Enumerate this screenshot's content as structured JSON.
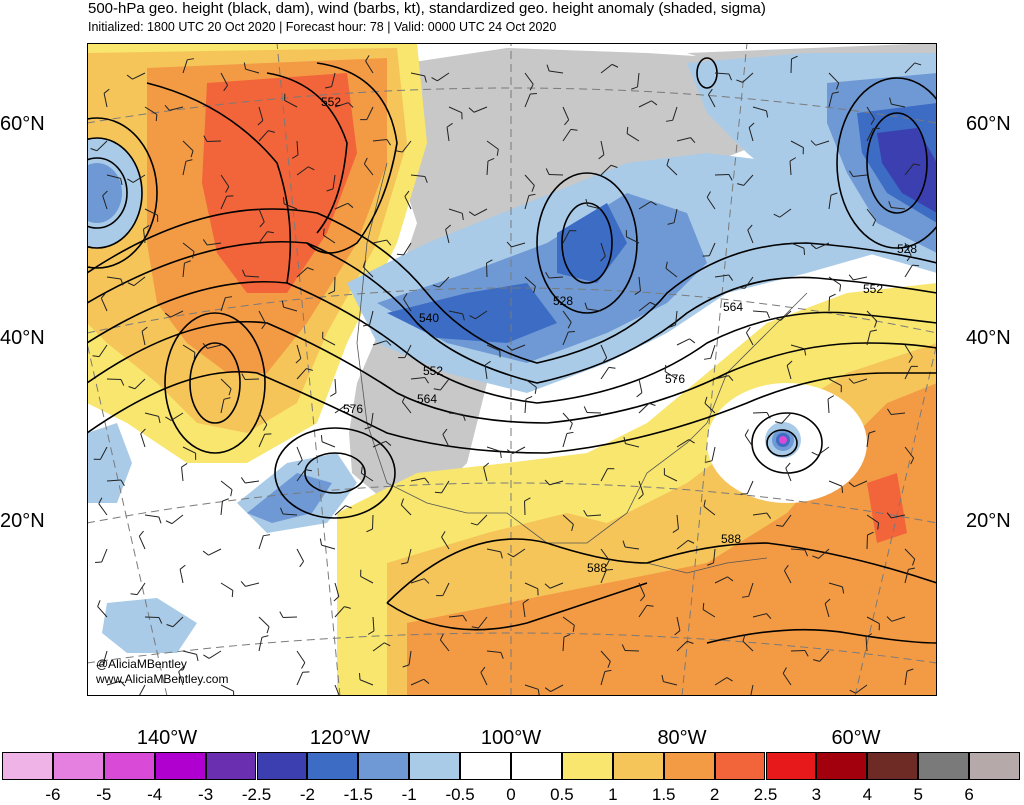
{
  "header": {
    "title": "500-hPa geo. height (black, dam), wind (barbs, kt), standardized geo. height anomaly (shaded, sigma)",
    "subtitle": "Initialized: 1800 UTC 20 Oct 2020 | Forecast hour: 78 | Valid: 0000 UTC 24 Oct 2020"
  },
  "axes": {
    "lat_left": [
      "60°N",
      "40°N",
      "20°N"
    ],
    "lat_right": [
      "60°N",
      "40°N",
      "20°N"
    ],
    "lon": [
      "140°W",
      "120°W",
      "100°W",
      "80°W",
      "60°W"
    ]
  },
  "contour_labels": [
    "552",
    "540",
    "528",
    "552",
    "564",
    "576",
    "564",
    "576",
    "528",
    "552",
    "588",
    "588"
  ],
  "credit": {
    "line1": "@AliciaMBentley",
    "line2": "www.AliciaMBentley.com"
  },
  "colorbar": {
    "labels": [
      "-6",
      "-5",
      "-4",
      "-3",
      "-2.5",
      "-2",
      "-1.5",
      "-1",
      "-0.5",
      "0",
      "0.5",
      "1",
      "1.5",
      "2",
      "2.5",
      "3",
      "4",
      "5",
      "6"
    ],
    "colors": [
      "#f0b3e8",
      "#e680e0",
      "#d94ad6",
      "#b000d0",
      "#6a2fb0",
      "#3b3fb0",
      "#3c6cc4",
      "#6f99d4",
      "#a9cbe8",
      "#ffffff",
      "#ffffff",
      "#f8e66e",
      "#f5c55a",
      "#f39a45",
      "#f2643a",
      "#e8191b",
      "#a3000d",
      "#6e2a25",
      "#7a7a7a",
      "#b5a9a9"
    ]
  },
  "colors": {
    "anom_pos1": "#f8e66e",
    "anom_pos2": "#f5c55a",
    "anom_pos3": "#f39a45",
    "anom_pos4": "#f2643a",
    "anom_neg1": "#a9cbe8",
    "anom_neg2": "#6f99d4",
    "anom_neg3": "#3c6cc4",
    "land_grey": "#c8c8c8"
  }
}
